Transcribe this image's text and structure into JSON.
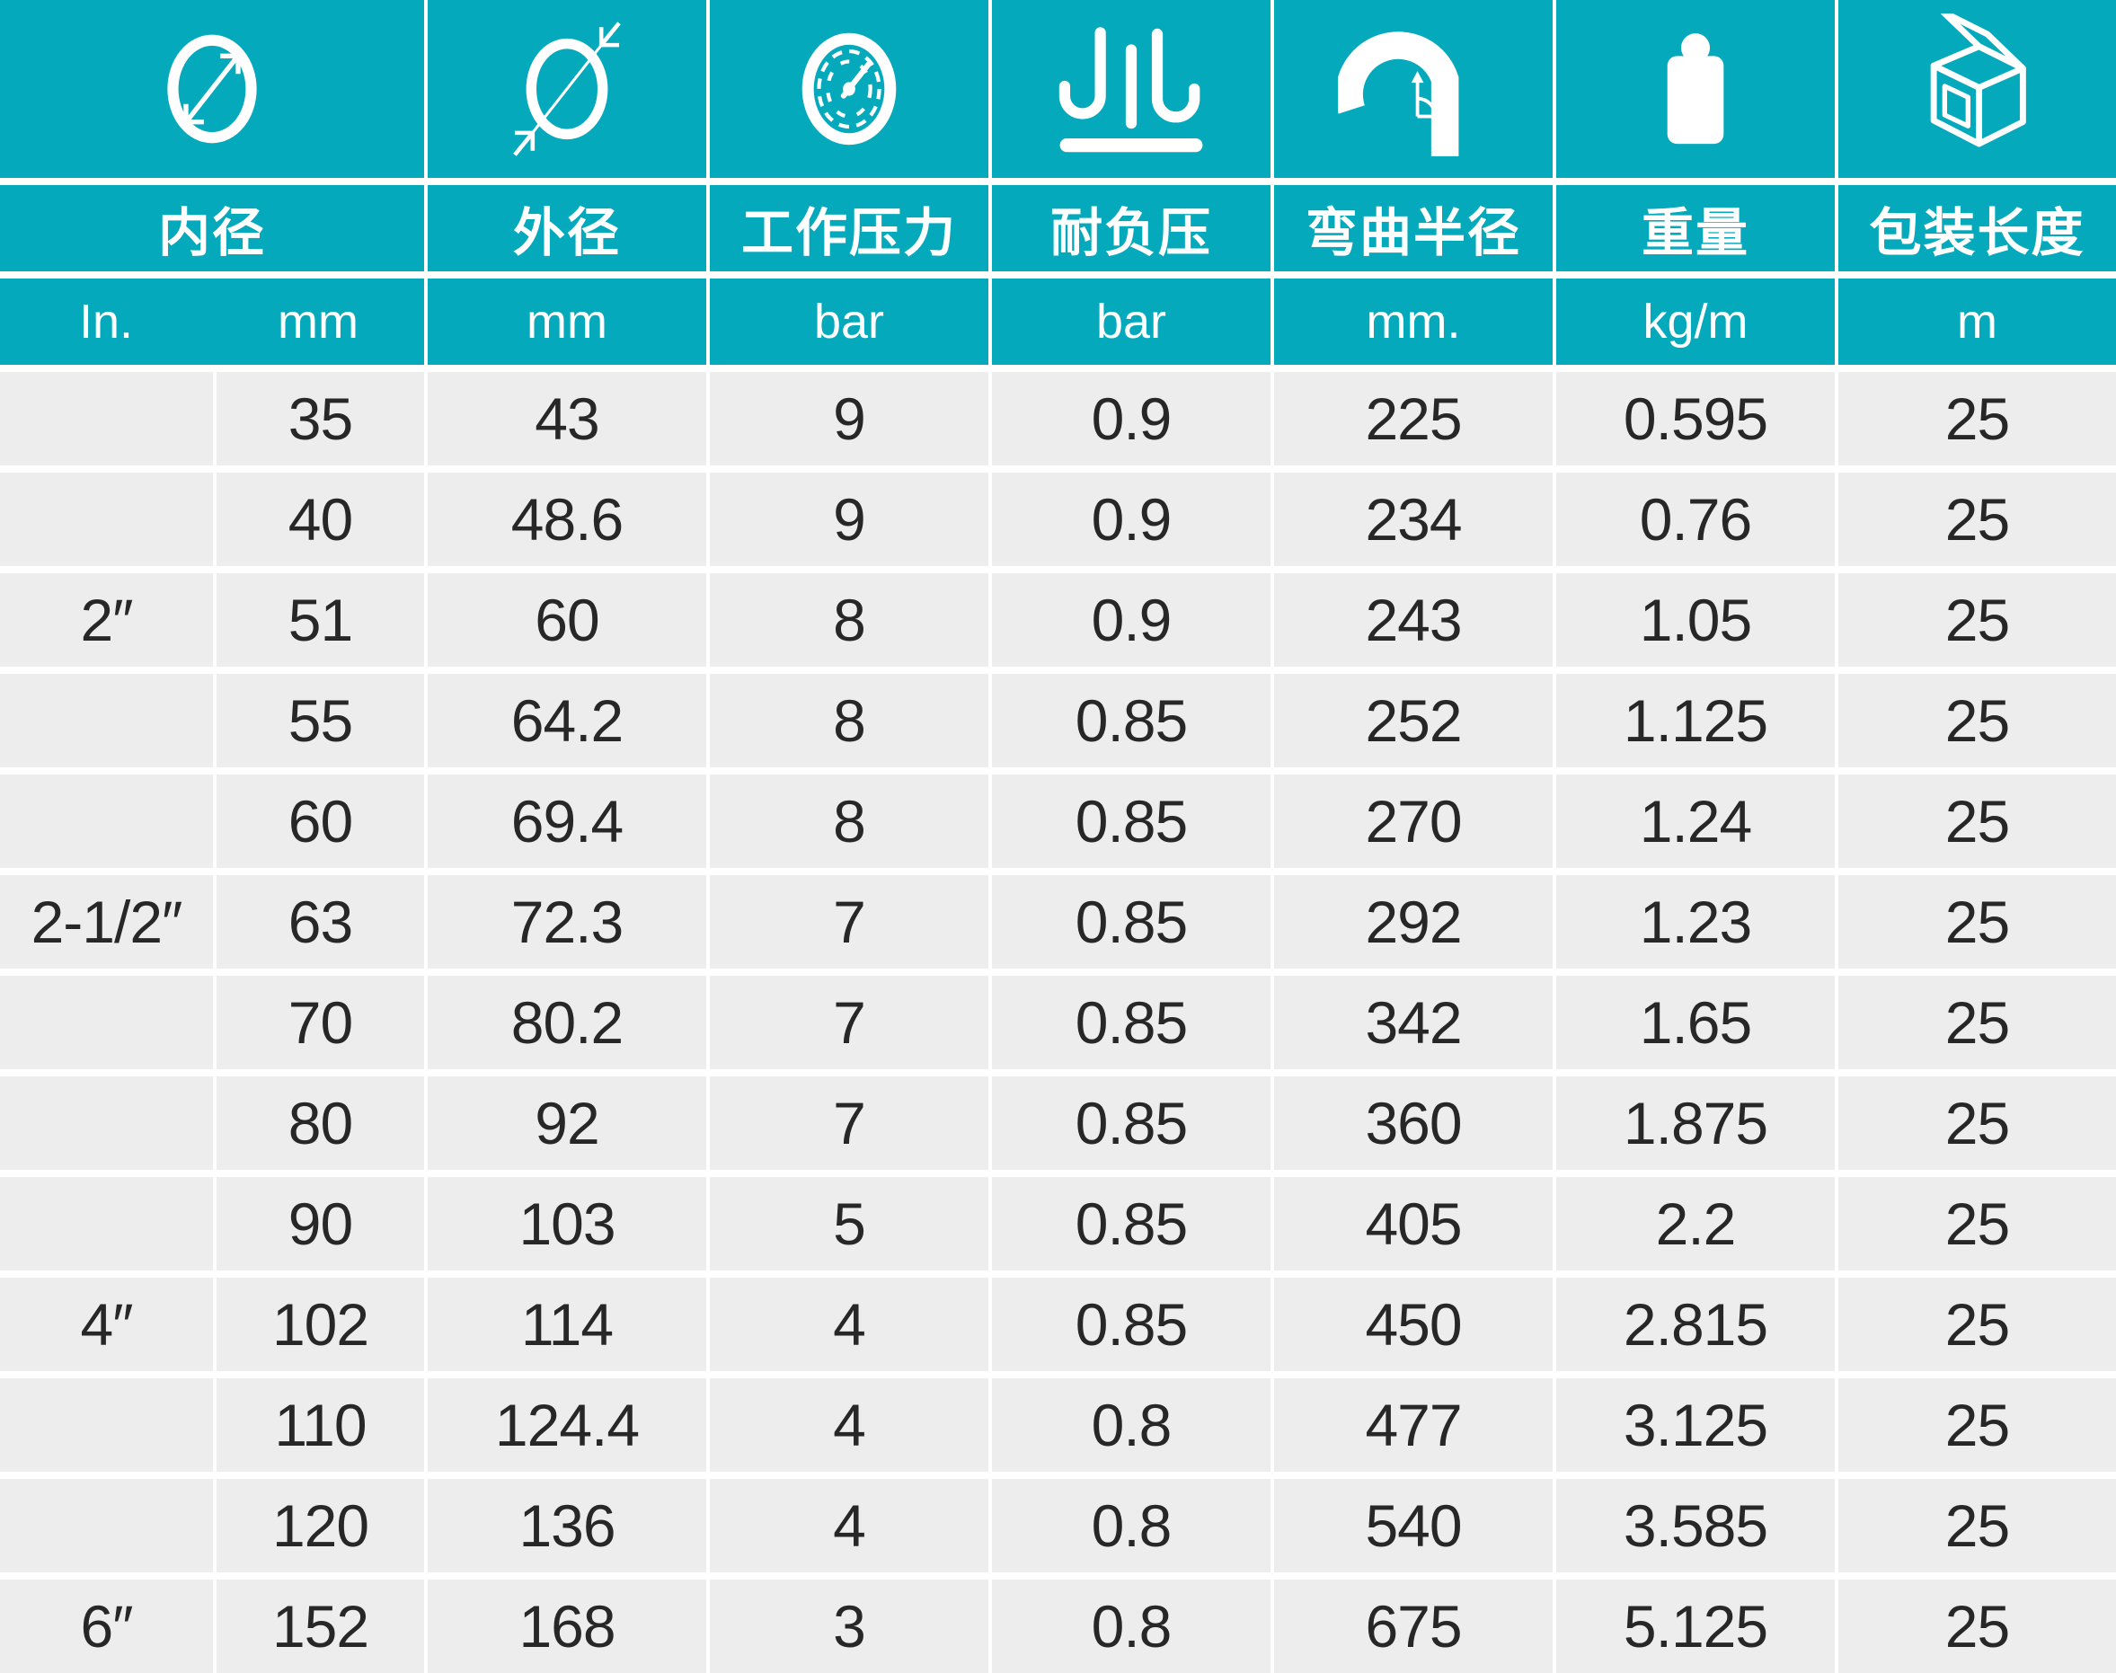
{
  "table": {
    "accent_color": "#04a9bc",
    "row_color": "#ededed",
    "column_keys": [
      "size_in",
      "size_mm",
      "od_mm",
      "wp_bar",
      "vacuum_bar",
      "bend_mm",
      "weight_kgm",
      "pack_m"
    ],
    "columns": [
      {
        "label": "内径",
        "icon": "inner-diameter-icon",
        "units": [
          "In.",
          "mm"
        ]
      },
      {
        "label": "外径",
        "icon": "outer-diameter-icon",
        "unit": "mm"
      },
      {
        "label": "工作压力",
        "icon": "pressure-gauge-icon",
        "unit": "bar"
      },
      {
        "label": "耐负压",
        "icon": "vacuum-resistance-icon",
        "unit": "bar"
      },
      {
        "label": "弯曲半径",
        "icon": "bend-radius-icon",
        "unit": "mm."
      },
      {
        "label": "重量",
        "icon": "weight-icon",
        "unit": "kg/m"
      },
      {
        "label": "包装长度",
        "icon": "package-box-icon",
        "unit": "m"
      }
    ],
    "rows": [
      [
        "",
        "35",
        "43",
        "9",
        "0.9",
        "225",
        "0.595",
        "25"
      ],
      [
        "",
        "40",
        "48.6",
        "9",
        "0.9",
        "234",
        "0.76",
        "25"
      ],
      [
        "2″",
        "51",
        "60",
        "8",
        "0.9",
        "243",
        "1.05",
        "25"
      ],
      [
        "",
        "55",
        "64.2",
        "8",
        "0.85",
        "252",
        "1.125",
        "25"
      ],
      [
        "",
        "60",
        "69.4",
        "8",
        "0.85",
        "270",
        "1.24",
        "25"
      ],
      [
        "2-1/2″",
        "63",
        "72.3",
        "7",
        "0.85",
        "292",
        "1.23",
        "25"
      ],
      [
        "",
        "70",
        "80.2",
        "7",
        "0.85",
        "342",
        "1.65",
        "25"
      ],
      [
        "",
        "80",
        "92",
        "7",
        "0.85",
        "360",
        "1.875",
        "25"
      ],
      [
        "",
        "90",
        "103",
        "5",
        "0.85",
        "405",
        "2.2",
        "25"
      ],
      [
        "4″",
        "102",
        "114",
        "4",
        "0.85",
        "450",
        "2.815",
        "25"
      ],
      [
        "",
        "110",
        "124.4",
        "4",
        "0.8",
        "477",
        "3.125",
        "25"
      ],
      [
        "",
        "120",
        "136",
        "4",
        "0.8",
        "540",
        "3.585",
        "25"
      ],
      [
        "6″",
        "152",
        "168",
        "3",
        "0.8",
        "675",
        "5.125",
        "25"
      ]
    ]
  }
}
